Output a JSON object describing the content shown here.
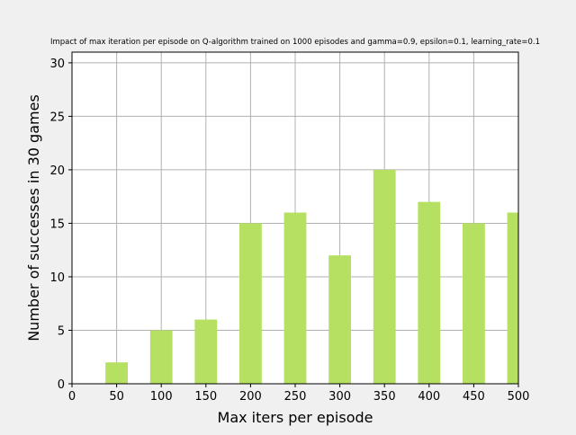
{
  "chart_data": {
    "type": "bar",
    "title": "Impact of max iteration per episode on Q-algorithm trained on 1000 episodes and gamma=0.9, epsilon=0.1, learning_rate=0.1",
    "xlabel": "Max iters per episode",
    "ylabel": "Number of successes in 30 games",
    "x": [
      50,
      100,
      150,
      200,
      250,
      300,
      350,
      400,
      450,
      500
    ],
    "values": [
      2,
      5,
      6,
      15,
      16,
      12,
      20,
      17,
      15,
      16
    ],
    "bar_width": 25,
    "xlim": [
      0,
      500
    ],
    "ylim": [
      0,
      31
    ],
    "xticks": [
      0,
      50,
      100,
      150,
      200,
      250,
      300,
      350,
      400,
      450,
      500
    ],
    "yticks": [
      0,
      5,
      10,
      15,
      20,
      25,
      30
    ],
    "grid": true,
    "colors": {
      "bar": "#b5e061",
      "background": "#f0f0f0",
      "plot_area": "#ffffff",
      "grid": "#b0b0b0"
    }
  }
}
